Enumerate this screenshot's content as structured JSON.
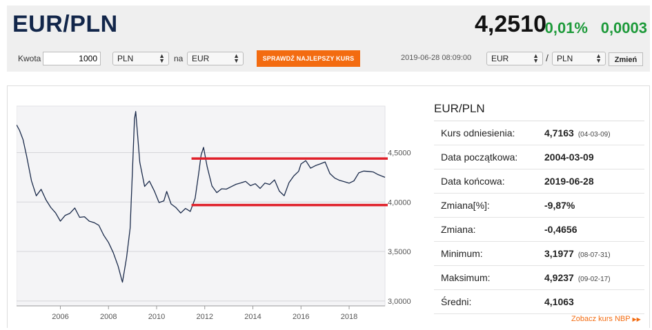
{
  "header": {
    "pair": "EUR/PLN",
    "rate": "4,2510",
    "change_pct": "0,01%",
    "change_abs": "0,0003"
  },
  "toolbar": {
    "amount_label": "Kwota",
    "amount_value": "1000",
    "from_currency": "PLN",
    "to_label": "na",
    "to_currency": "EUR",
    "best_rate_button": "SPRAWDŹ NAJLEPSZY KURS",
    "datetime": "2019-06-28 08:09:00",
    "pair_base": "EUR",
    "pair_sep": "/",
    "pair_quote": "PLN",
    "change_button": "Zmień"
  },
  "stats": {
    "title": "EUR/PLN",
    "rows": [
      {
        "label": "Kurs odniesienia:",
        "value": "4,7163",
        "date": "(04-03-09)"
      },
      {
        "label": "Data początkowa:",
        "value": "2004-03-09",
        "date": ""
      },
      {
        "label": "Data końcowa:",
        "value": "2019-06-28",
        "date": ""
      },
      {
        "label": "Zmiana[%]:",
        "value": "-9,87%",
        "date": ""
      },
      {
        "label": "Zmiana:",
        "value": "-0,4656",
        "date": ""
      },
      {
        "label": "Minimum:",
        "value": "3,1977",
        "date": "(08-07-31)"
      },
      {
        "label": "Maksimum:",
        "value": "4,9237",
        "date": "(09-02-17)"
      },
      {
        "label": "Średni:",
        "value": "4,1063",
        "date": ""
      }
    ],
    "nbp_link": "Zobacz kurs NBP"
  },
  "colors": {
    "line": "#1a2a4a",
    "highlight": "#e0202a",
    "accent": "#f36b10",
    "positive": "#1d9a3a"
  },
  "chart_data": {
    "type": "line",
    "title": "",
    "xlabel": "",
    "ylabel": "",
    "x_ticks": [
      "2006",
      "2008",
      "2010",
      "2012",
      "2014",
      "2016",
      "2018"
    ],
    "x_tick_values": [
      2006,
      2008,
      2010,
      2012,
      2014,
      2016,
      2018
    ],
    "y_ticks": [
      "3,0000",
      "3,5000",
      "4,0000",
      "4,5000"
    ],
    "y_tick_values": [
      3.0,
      3.5,
      4.0,
      4.5
    ],
    "xlim": [
      2004.18,
      2019.49
    ],
    "ylim": [
      2.95,
      4.97
    ],
    "grid": true,
    "series": [
      {
        "x": [
          2004.18,
          2004.3,
          2004.45,
          2004.6,
          2004.8,
          2005.0,
          2005.2,
          2005.4,
          2005.6,
          2005.8,
          2006.0,
          2006.2,
          2006.4,
          2006.6,
          2006.8,
          2007.0,
          2007.2,
          2007.4,
          2007.6,
          2007.8,
          2008.0,
          2008.2,
          2008.4,
          2008.55,
          2008.58,
          2008.75,
          2008.9,
          2009.0,
          2009.08,
          2009.13,
          2009.3,
          2009.5,
          2009.7,
          2009.9,
          2010.1,
          2010.3,
          2010.42,
          2010.6,
          2010.8,
          2011.0,
          2011.2,
          2011.4,
          2011.6,
          2011.75,
          2011.85,
          2011.95,
          2012.1,
          2012.3,
          2012.5,
          2012.7,
          2012.9,
          2013.1,
          2013.3,
          2013.5,
          2013.7,
          2013.9,
          2014.1,
          2014.3,
          2014.5,
          2014.7,
          2014.9,
          2015.1,
          2015.3,
          2015.5,
          2015.7,
          2015.9,
          2016.0,
          2016.2,
          2016.4,
          2016.6,
          2016.8,
          2017.0,
          2017.2,
          2017.4,
          2017.6,
          2017.8,
          2018.0,
          2018.2,
          2018.4,
          2018.6,
          2018.8,
          2019.0,
          2019.2,
          2019.49
        ],
        "y": [
          4.78,
          4.72,
          4.62,
          4.45,
          4.2,
          4.05,
          4.12,
          4.02,
          3.95,
          3.9,
          3.82,
          3.88,
          3.9,
          3.95,
          3.85,
          3.85,
          3.8,
          3.78,
          3.75,
          3.65,
          3.58,
          3.48,
          3.35,
          3.22,
          3.2,
          3.45,
          3.75,
          4.35,
          4.85,
          4.92,
          4.4,
          4.15,
          4.2,
          4.1,
          3.98,
          4.0,
          4.1,
          3.98,
          3.95,
          3.9,
          3.95,
          3.92,
          4.05,
          4.3,
          4.48,
          4.55,
          4.35,
          4.15,
          4.08,
          4.12,
          4.12,
          4.15,
          4.18,
          4.2,
          4.22,
          4.18,
          4.2,
          4.15,
          4.2,
          4.18,
          4.22,
          4.1,
          4.05,
          4.18,
          4.25,
          4.3,
          4.38,
          4.42,
          4.35,
          4.38,
          4.4,
          4.42,
          4.3,
          4.25,
          4.22,
          4.2,
          4.18,
          4.2,
          4.28,
          4.3,
          4.3,
          4.3,
          4.28,
          4.25
        ]
      }
    ],
    "highlight_levels": [
      4.44,
      3.97
    ]
  }
}
